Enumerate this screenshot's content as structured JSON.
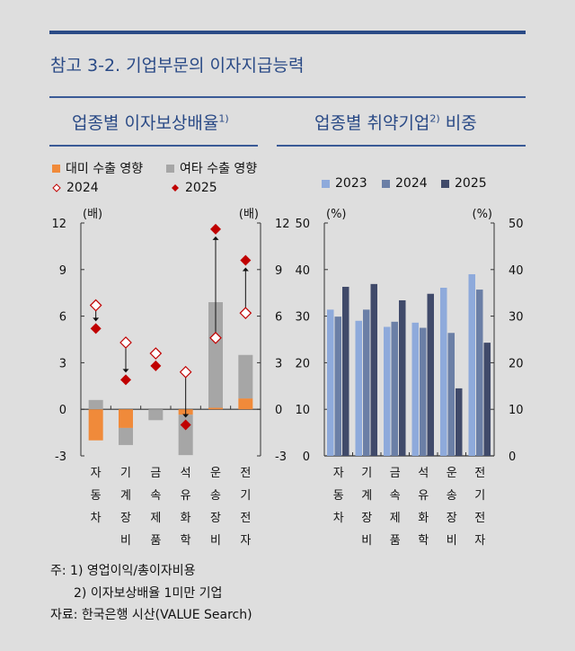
{
  "header": {
    "title": "참고 3-2. 기업부문의 이자지급능력"
  },
  "colors": {
    "title_blue": "#2a4a86",
    "orange": "#f08a3a",
    "gray": "#a6a6a6",
    "red": "#c00000",
    "c2023": "#8eaadb",
    "c2024": "#6b7fa6",
    "c2025": "#404a6a"
  },
  "chart_data": [
    {
      "type": "bar",
      "title": "업종별 이자보상배율",
      "title_sup": "1)",
      "ylabel_left": "(배)",
      "ylabel_right": "(배)",
      "ylim": [
        -3,
        12
      ],
      "yticks": [
        "-3",
        "0",
        "3",
        "6",
        "9",
        "12"
      ],
      "categories": [
        "자동차",
        "기계장비",
        "금속제품",
        "석유화학",
        "운송장비",
        "전기전자"
      ],
      "legend": [
        "대미 수출 영향",
        "여타 수출 영향",
        "2024",
        "2025"
      ],
      "series": [
        {
          "name": "대미 수출 영향",
          "kind": "stacked-bar",
          "values": [
            -2.0,
            -1.2,
            0.0,
            -0.35,
            0.1,
            0.7
          ]
        },
        {
          "name": "여타 수출 영향",
          "kind": "stacked-bar",
          "values": [
            0.6,
            -1.1,
            -0.7,
            -2.6,
            6.8,
            2.8
          ]
        },
        {
          "name": "2024",
          "kind": "marker-hollow-diamond",
          "values": [
            6.7,
            4.3,
            3.6,
            2.4,
            4.6,
            6.2
          ]
        },
        {
          "name": "2025",
          "kind": "marker-filled-diamond",
          "values": [
            5.2,
            1.9,
            2.8,
            -1.0,
            11.6,
            9.6
          ]
        }
      ]
    },
    {
      "type": "bar",
      "title": "업종별 취약기업 비중",
      "title_sup": "2)",
      "title_suffix": "비중",
      "ylabel_left": "(%)",
      "ylabel_right": "(%)",
      "ylim": [
        0,
        50
      ],
      "yticks": [
        "0",
        "10",
        "20",
        "30",
        "40",
        "50"
      ],
      "categories": [
        "자동차",
        "기계장비",
        "금속제품",
        "석유화학",
        "운송장비",
        "전기전자"
      ],
      "legend": [
        "2023",
        "2024",
        "2025"
      ],
      "series": [
        {
          "name": "2023",
          "values": [
            31.4,
            29.0,
            27.7,
            28.6,
            36.1,
            39.0
          ]
        },
        {
          "name": "2024",
          "values": [
            29.9,
            31.4,
            28.8,
            27.5,
            26.4,
            35.7
          ]
        },
        {
          "name": "2025",
          "values": [
            36.3,
            36.9,
            33.4,
            34.8,
            14.5,
            24.3
          ]
        }
      ]
    }
  ],
  "notes": {
    "n1": "주: 1) 영업이익/총이자비용",
    "n2": "2) 이자보상배율 1미만 기업",
    "source": "자료: 한국은행 시산(VALUE Search)"
  }
}
